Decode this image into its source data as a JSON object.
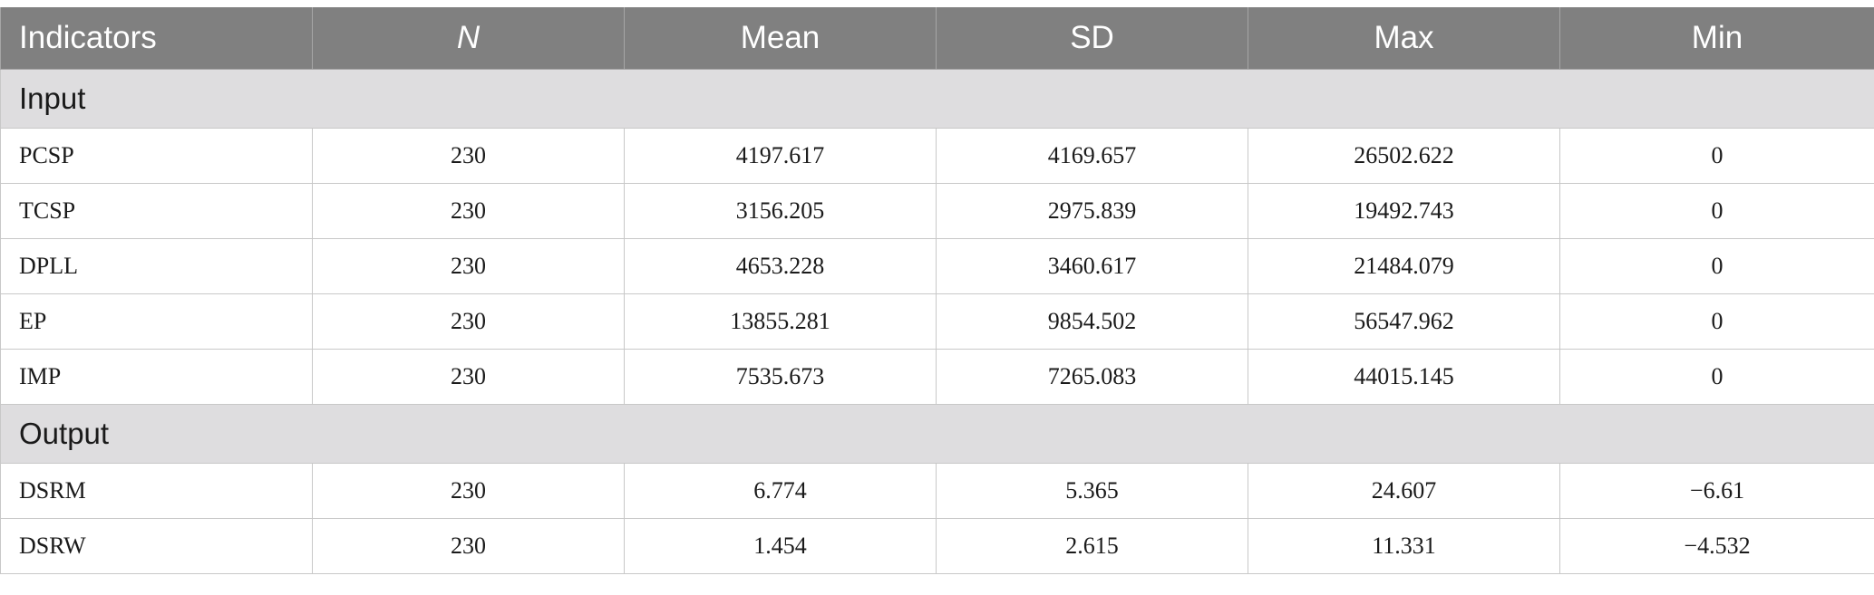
{
  "table": {
    "columns": [
      "Indicators",
      "N",
      "Mean",
      "SD",
      "Max",
      "Min"
    ],
    "sections": [
      {
        "label": "Input",
        "rows": [
          [
            "PCSP",
            "230",
            "4197.617",
            "4169.657",
            "26502.622",
            "0"
          ],
          [
            "TCSP",
            "230",
            "3156.205",
            "2975.839",
            "19492.743",
            "0"
          ],
          [
            "DPLL",
            "230",
            "4653.228",
            "3460.617",
            "21484.079",
            "0"
          ],
          [
            "EP",
            "230",
            "13855.281",
            "9854.502",
            "56547.962",
            "0"
          ],
          [
            "IMP",
            "230",
            "7535.673",
            "7265.083",
            "44015.145",
            "0"
          ]
        ]
      },
      {
        "label": "Output",
        "rows": [
          [
            "DSRM",
            "230",
            "6.774",
            "5.365",
            "24.607",
            "−6.61"
          ],
          [
            "DSRW",
            "230",
            "1.454",
            "2.615",
            "11.331",
            "−4.532"
          ]
        ]
      }
    ]
  }
}
